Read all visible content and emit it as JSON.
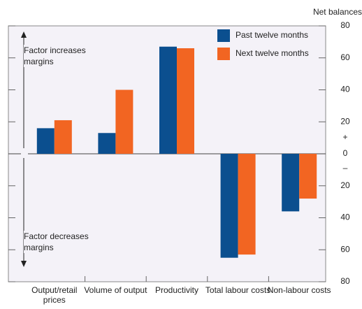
{
  "chart_data": {
    "type": "bar",
    "y_axis_label": "Net balances",
    "categories": [
      "Output/retail prices",
      "Volume of output",
      "Productivity",
      "Total labour costs",
      "Non-labour costs"
    ],
    "series": [
      {
        "name": "Past twelve months",
        "color": "#0b4f8f",
        "values": [
          16,
          13,
          67,
          -65,
          -36
        ]
      },
      {
        "name": "Next twelve months",
        "color": "#f26522",
        "values": [
          21,
          40,
          66,
          -63,
          -28
        ]
      }
    ],
    "ylim": [
      -80,
      80
    ],
    "yticks": [
      {
        "value": -80,
        "label": "80"
      },
      {
        "value": -60,
        "label": "60"
      },
      {
        "value": -40,
        "label": "40"
      },
      {
        "value": -20,
        "label": "20"
      },
      0,
      20,
      40,
      60,
      80
    ],
    "annotations": [
      "Factor increases margins",
      "Factor decreases margins",
      "+",
      "–"
    ],
    "legend": "top-right"
  }
}
